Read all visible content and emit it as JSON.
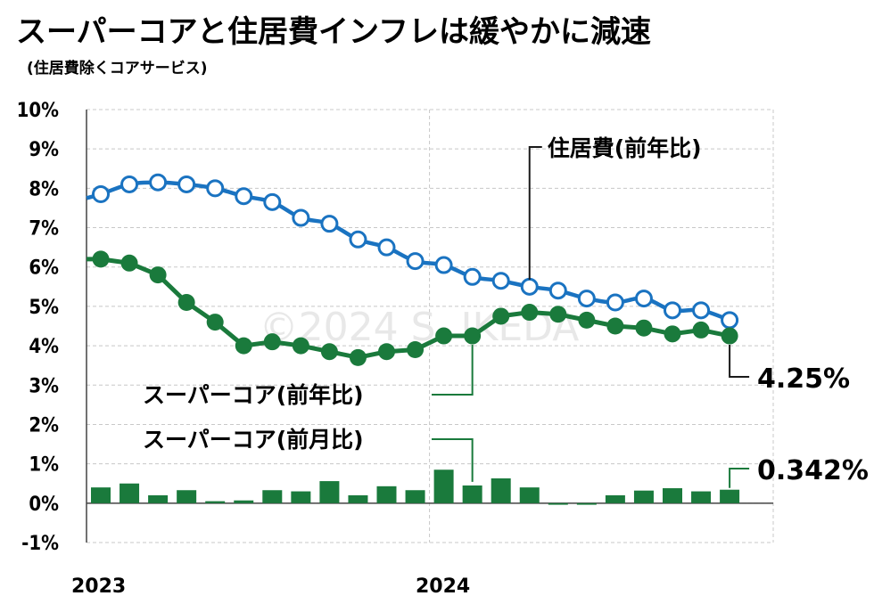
{
  "title": "スーパーコアと住居費インフレは緩やかに減速",
  "subtitle": "(住居費除くコアサービス)",
  "watermark": "©2024 S. IKEDA",
  "chart_data": {
    "type": "line",
    "x": [
      "2023-01",
      "2023-02",
      "2023-03",
      "2023-04",
      "2023-05",
      "2023-06",
      "2023-07",
      "2023-08",
      "2023-09",
      "2023-10",
      "2023-11",
      "2023-12",
      "2024-01",
      "2024-02",
      "2024-03",
      "2024-04",
      "2024-05",
      "2024-06",
      "2024-07",
      "2024-08",
      "2024-09",
      "2024-10",
      "2024-11",
      "2024-12"
    ],
    "x_tick_labels": [
      "2023",
      "2024"
    ],
    "y_tick_labels": [
      "10%",
      "9%",
      "8%",
      "7%",
      "6%",
      "5%",
      "4%",
      "3%",
      "2%",
      "1%",
      "0%",
      "-1%"
    ],
    "ylim": [
      -1,
      10
    ],
    "grid": true,
    "series": [
      {
        "name": "住居費(前年比)",
        "kind": "line-hollow-markers",
        "color": "#1a73c1",
        "start_value": 7.75,
        "values": [
          7.85,
          8.1,
          8.15,
          8.1,
          8.0,
          7.8,
          7.65,
          7.25,
          7.1,
          6.7,
          6.5,
          6.15,
          6.05,
          5.75,
          5.65,
          5.5,
          5.4,
          5.2,
          5.1,
          5.2,
          4.9,
          4.9,
          4.65,
          null
        ]
      },
      {
        "name": "スーパーコア(前年比)",
        "kind": "line-filled-markers",
        "color": "#1a7a3c",
        "start_value": 6.2,
        "values": [
          6.2,
          6.1,
          5.8,
          5.1,
          4.6,
          4.0,
          4.1,
          4.0,
          3.85,
          3.7,
          3.85,
          3.9,
          4.25,
          4.25,
          4.75,
          4.85,
          4.8,
          4.65,
          4.5,
          4.45,
          4.3,
          4.4,
          4.25,
          null
        ],
        "end_label": "4.25%"
      },
      {
        "name": "スーパーコア(前月比)",
        "kind": "bar",
        "color": "#1a7a3c",
        "values": [
          0.4,
          0.5,
          0.2,
          0.33,
          0.05,
          0.07,
          0.33,
          0.3,
          0.56,
          0.2,
          0.43,
          0.33,
          0.85,
          0.45,
          0.63,
          0.4,
          -0.04,
          -0.04,
          0.2,
          0.32,
          0.38,
          0.3,
          0.342,
          null
        ],
        "end_label": "0.342%"
      }
    ]
  }
}
